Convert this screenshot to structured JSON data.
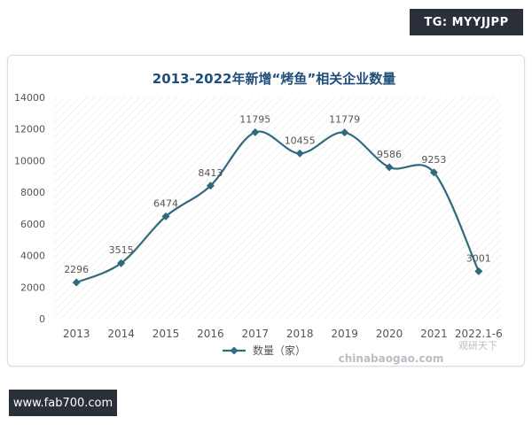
{
  "badge": {
    "text": "TG: MYYJJPP"
  },
  "footer": {
    "url_text": "www.fab700.com"
  },
  "watermark": {
    "site": "chinabaogao.com",
    "brand": "观研天下"
  },
  "colors": {
    "line": "#2f6b7c",
    "marker": "#2f6b7c",
    "title": "#1f4e79",
    "axis_text": "#555555"
  },
  "chart_data": {
    "type": "line",
    "title": "2013-2022年新增“烤鱼”相关企业数量",
    "categories": [
      "2013",
      "2014",
      "2015",
      "2016",
      "2017",
      "2018",
      "2019",
      "2020",
      "2021",
      "2022.1-6"
    ],
    "series": [
      {
        "name": "数量（家）",
        "values": [
          2296,
          3515,
          6474,
          8413,
          11795,
          10455,
          11779,
          9586,
          9253,
          3001
        ]
      }
    ],
    "y_ticks": [
      "0",
      "2000",
      "4000",
      "6000",
      "8000",
      "10000",
      "12000",
      "14000"
    ],
    "ylim": [
      0,
      14000
    ],
    "smooth": true,
    "data_labels": true,
    "grid": false,
    "plot_background": "diagonal-hatch",
    "legend_position": "bottom-center"
  }
}
